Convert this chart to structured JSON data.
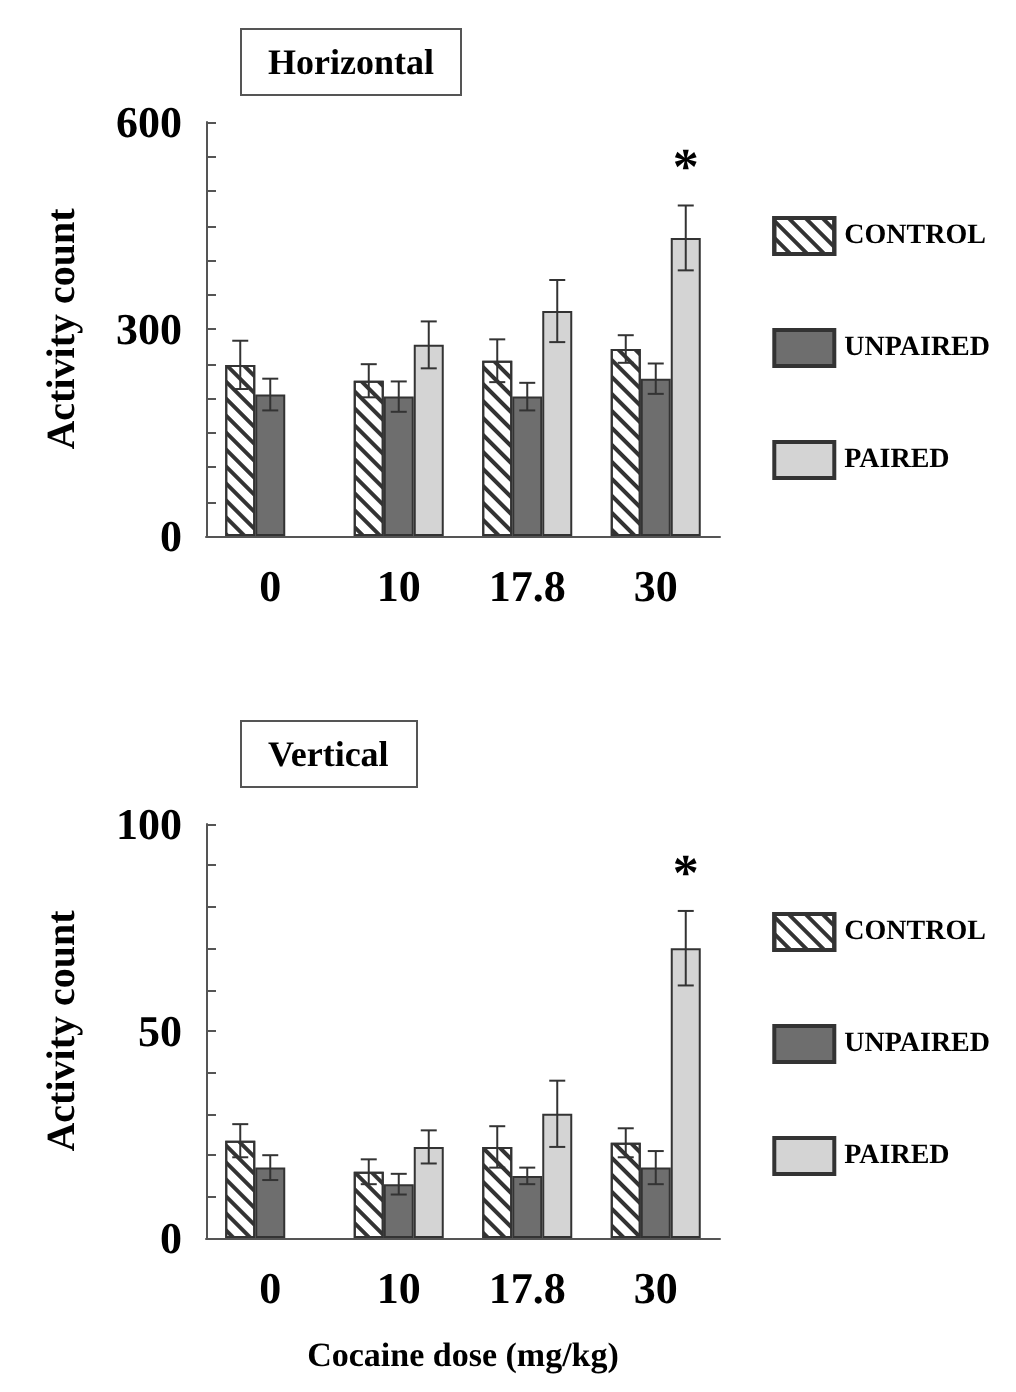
{
  "chart_data": [
    {
      "type": "bar",
      "title": "Horizontal",
      "ylabel": "Activity count",
      "categories": [
        "0",
        "10",
        "17.8",
        "30"
      ],
      "series": [
        {
          "name": "CONTROL",
          "color": "#ffffff",
          "values": [
            248,
            225,
            254,
            271
          ],
          "errors": [
            35,
            24,
            31,
            20
          ]
        },
        {
          "name": "UNPAIRED",
          "color": "#6e6e6e",
          "values": [
            205,
            202,
            202,
            228
          ],
          "errors": [
            23,
            22,
            20,
            22
          ]
        },
        {
          "name": "PAIRED",
          "color": "#d4d4d4",
          "values": [
            null,
            277,
            326,
            432
          ],
          "errors": [
            null,
            34,
            45,
            47
          ]
        }
      ],
      "ylim": [
        0,
        600
      ],
      "yticks": [
        0,
        {
          "value": 50,
          "label": null
        },
        {
          "value": 100,
          "label": null
        },
        {
          "value": 150,
          "label": null
        },
        {
          "value": 200,
          "label": null
        },
        {
          "value": 250,
          "label": null
        },
        300,
        {
          "value": 350,
          "label": null
        },
        {
          "value": 400,
          "label": null
        },
        {
          "value": 450,
          "label": null
        },
        {
          "value": 500,
          "label": null
        },
        {
          "value": 550,
          "label": null
        },
        600
      ],
      "annotations": [
        "*"
      ],
      "legend": "right",
      "grid": false
    },
    {
      "type": "bar",
      "title": "Vertical",
      "ylabel": "Activity count",
      "xlabel": "Cocaine dose (mg/kg)",
      "categories": [
        "0",
        "10",
        "17.8",
        "30"
      ],
      "series": [
        {
          "name": "CONTROL",
          "color": "#ffffff",
          "values": [
            23.5,
            16,
            22,
            23
          ],
          "errors": [
            4,
            3,
            5,
            3.5
          ]
        },
        {
          "name": "UNPAIRED",
          "color": "#6e6e6e",
          "values": [
            17,
            13,
            15,
            17
          ],
          "errors": [
            3,
            2.5,
            2,
            4
          ]
        },
        {
          "name": "PAIRED",
          "color": "#d4d4d4",
          "values": [
            null,
            22,
            30,
            70
          ],
          "errors": [
            null,
            4,
            8,
            9
          ]
        }
      ],
      "ylim": [
        0,
        100
      ],
      "yticks": [
        0,
        {
          "value": 10,
          "label": null
        },
        {
          "value": 20,
          "label": null
        },
        {
          "value": 30,
          "label": null
        },
        {
          "value": 40,
          "label": null
        },
        50,
        {
          "value": 60,
          "label": null
        },
        {
          "value": 70,
          "label": null
        },
        {
          "value": 80,
          "label": null
        },
        {
          "value": 90,
          "label": null
        },
        100
      ],
      "annotations": [
        "*"
      ],
      "legend": "right",
      "grid": false
    }
  ]
}
